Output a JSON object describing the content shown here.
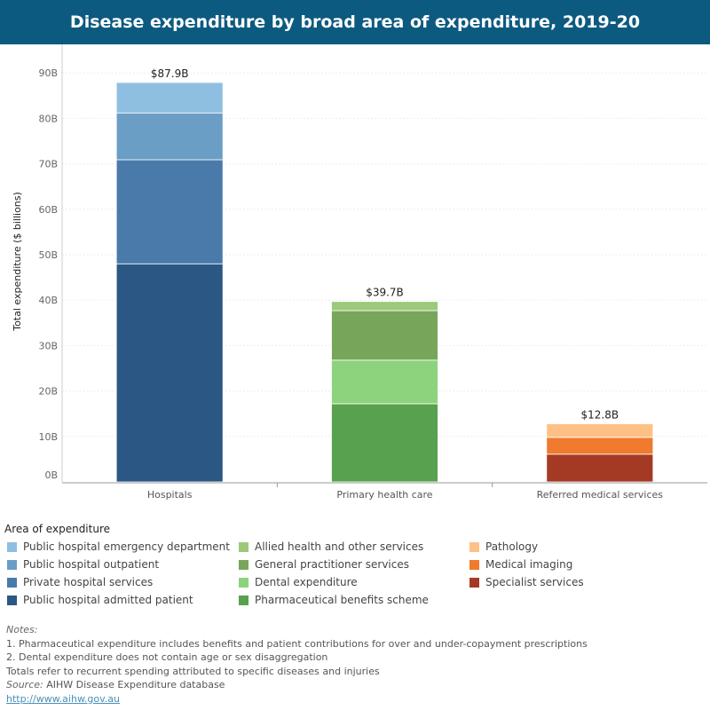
{
  "title": "Disease expenditure by broad area of expenditure, 2019-20",
  "legend_title": "Area of expenditure",
  "legend": [
    {
      "label": "Public hospital emergency department",
      "color": "#8fbfe0"
    },
    {
      "label": "Allied health and other services",
      "color": "#9cc97a"
    },
    {
      "label": "Pathology",
      "color": "#ffc085"
    },
    {
      "label": "Public hospital outpatient",
      "color": "#6a9ec5"
    },
    {
      "label": "General practitioner services",
      "color": "#77a65a"
    },
    {
      "label": "Medical imaging",
      "color": "#f07a2d"
    },
    {
      "label": "Private hospital services",
      "color": "#4a7aaa"
    },
    {
      "label": "Dental expenditure",
      "color": "#8dd37e"
    },
    {
      "label": "Specialist services",
      "color": "#a53a24"
    },
    {
      "label": "Public hospital admitted patient",
      "color": "#2a5783"
    },
    {
      "label": "Pharmaceutical benefits scheme",
      "color": "#58a14e"
    }
  ],
  "notes": {
    "heading": "Notes:",
    "lines": [
      "1. Pharmaceutical expenditure includes benefits and patient contributions for over and under-copayment prescriptions",
      "2. Dental expenditure does not contain age or sex disaggregation",
      "Totals refer to recurrent spending attributed to specific diseases and injuries"
    ],
    "source_label": "Source:",
    "source": " AIHW Disease Expenditure database",
    "link": "http://www.aihw.gov.au"
  },
  "chart_data": {
    "type": "bar",
    "stacked": true,
    "title": "Disease expenditure by broad area of expenditure, 2019-20",
    "xlabel": "",
    "ylabel": "Total expenditure ($ billions)",
    "ylim": [
      0,
      95
    ],
    "yticks": [
      0,
      10,
      20,
      30,
      40,
      50,
      60,
      70,
      80,
      90
    ],
    "ytick_labels": [
      "0B",
      "10B",
      "20B",
      "30B",
      "40B",
      "50B",
      "60B",
      "70B",
      "80B",
      "90B"
    ],
    "categories": [
      "Hospitals",
      "Primary health care",
      "Referred medical services"
    ],
    "totals": [
      "$87.9B",
      "$39.7B",
      "$12.8B"
    ],
    "total_values": [
      87.9,
      39.7,
      12.8
    ],
    "stacks": [
      [
        {
          "name": "Public hospital admitted patient",
          "value": 48.0,
          "color": "#2a5783"
        },
        {
          "name": "Private hospital services",
          "value": 22.9,
          "color": "#4a7aaa"
        },
        {
          "name": "Public hospital outpatient",
          "value": 10.3,
          "color": "#6a9ec5"
        },
        {
          "name": "Public hospital emergency department",
          "value": 6.7,
          "color": "#8fbfe0"
        }
      ],
      [
        {
          "name": "Pharmaceutical benefits scheme",
          "value": 17.2,
          "color": "#58a14e"
        },
        {
          "name": "Dental expenditure",
          "value": 9.6,
          "color": "#8dd37e"
        },
        {
          "name": "General practitioner services",
          "value": 10.9,
          "color": "#77a65a"
        },
        {
          "name": "Allied health and other services",
          "value": 2.0,
          "color": "#9cc97a"
        }
      ],
      [
        {
          "name": "Specialist services",
          "value": 6.1,
          "color": "#a53a24"
        },
        {
          "name": "Medical imaging",
          "value": 3.7,
          "color": "#f07a2d"
        },
        {
          "name": "Pathology",
          "value": 3.0,
          "color": "#ffc085"
        }
      ]
    ]
  }
}
